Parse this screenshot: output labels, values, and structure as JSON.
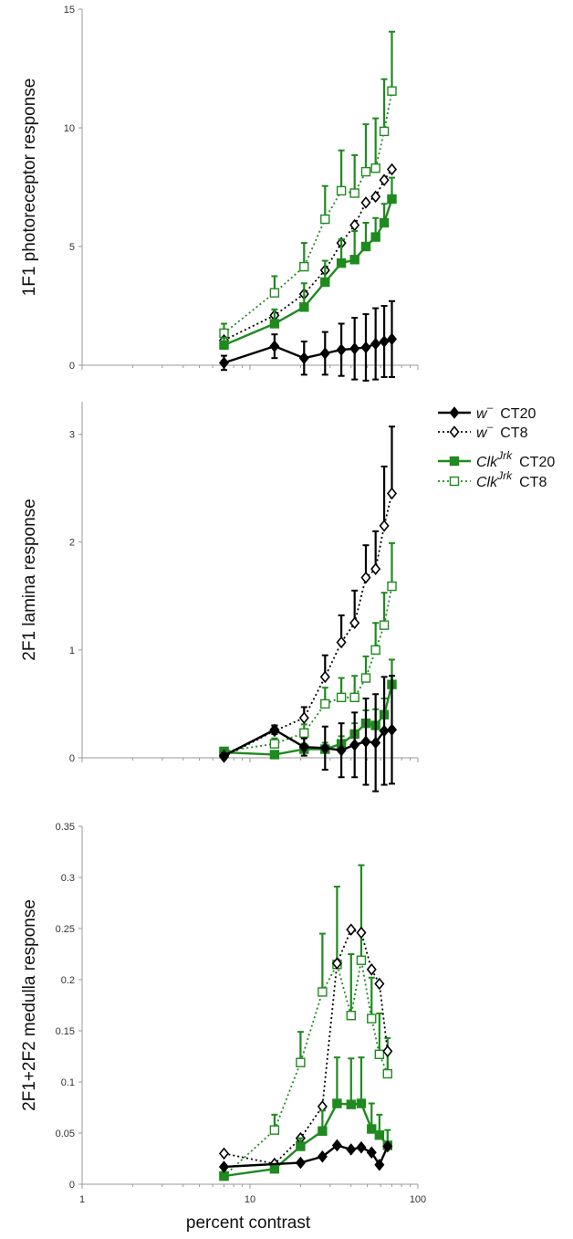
{
  "x_label": "percent contrast",
  "x_ticks": [
    "1",
    "10",
    "100"
  ],
  "colors": {
    "black": "#000000",
    "green": "#1f8a1f"
  },
  "legend": [
    {
      "id": "w_CT20",
      "genotype": "w",
      "sup": "–",
      "condition": "CT20",
      "color": "#000000",
      "line": "solid",
      "marker": "diamond-filled"
    },
    {
      "id": "w_CT8",
      "genotype": "w",
      "sup": "–",
      "condition": "CT8",
      "color": "#000000",
      "line": "dotted",
      "marker": "diamond-open"
    },
    {
      "id": "clk_CT20",
      "genotype": "Clk",
      "sup": "Jrk",
      "condition": "CT20",
      "color": "#1f8a1f",
      "line": "solid",
      "marker": "square-filled"
    },
    {
      "id": "clk_CT8",
      "genotype": "Clk",
      "sup": "Jrk",
      "condition": "CT8",
      "color": "#1f8a1f",
      "line": "dotted",
      "marker": "square-open"
    }
  ],
  "chart_data": [
    {
      "type": "line",
      "ylabel": "1F1 photoreceptor response",
      "xlabel": "percent contrast",
      "xscale": "log",
      "xlim": [
        1,
        100
      ],
      "ylim": [
        0,
        15
      ],
      "yticks": [
        0,
        5,
        10,
        15
      ],
      "series": [
        {
          "name": "w– CT20",
          "x": [
            7,
            14,
            21,
            28,
            35,
            42,
            49,
            56,
            63,
            70
          ],
          "y": [
            0.1,
            0.8,
            0.3,
            0.5,
            0.65,
            0.7,
            0.75,
            0.9,
            1.0,
            1.1
          ],
          "err": [
            0.3,
            0.5,
            0.7,
            0.9,
            1.1,
            1.3,
            1.4,
            1.5,
            1.5,
            1.6
          ]
        },
        {
          "name": "w– CT8",
          "x": [
            7,
            14,
            21,
            28,
            35,
            42,
            49,
            56,
            63,
            70
          ],
          "y": [
            1.05,
            2.1,
            3.0,
            4.0,
            5.15,
            5.9,
            6.85,
            7.1,
            7.8,
            8.25
          ],
          "err": [
            0,
            0,
            0,
            0,
            0,
            0,
            0,
            0,
            0,
            0
          ]
        },
        {
          "name": "ClkJrk CT20",
          "x": [
            7,
            14,
            21,
            28,
            35,
            42,
            49,
            56,
            63,
            70
          ],
          "y": [
            0.85,
            1.75,
            2.45,
            3.5,
            4.3,
            4.45,
            5.0,
            5.4,
            6.0,
            7.0
          ],
          "err": [
            0.3,
            0.6,
            1.0,
            0.9,
            1.0,
            1.2,
            1.0,
            0.8,
            0.8,
            0.9
          ]
        },
        {
          "name": "ClkJrk CT8",
          "x": [
            7,
            14,
            21,
            28,
            35,
            42,
            49,
            56,
            63,
            70
          ],
          "y": [
            1.35,
            3.05,
            4.15,
            6.15,
            7.35,
            7.25,
            8.15,
            8.3,
            9.85,
            11.55
          ],
          "err": [
            0.4,
            0.7,
            1.0,
            1.4,
            1.7,
            1.6,
            2.0,
            2.1,
            2.2,
            2.5
          ]
        }
      ]
    },
    {
      "type": "line",
      "ylabel": "2F1 lamina response",
      "xlabel": "percent contrast",
      "xscale": "log",
      "xlim": [
        1,
        100
      ],
      "ylim": [
        0,
        3.3
      ],
      "yticks": [
        0,
        1,
        2,
        3
      ],
      "series": [
        {
          "name": "w– CT20",
          "x": [
            7,
            14,
            21,
            28,
            35,
            42,
            49,
            56,
            63,
            70
          ],
          "y": [
            0.02,
            0.26,
            0.1,
            0.09,
            0.07,
            0.12,
            0.15,
            0.14,
            0.25,
            0.26
          ],
          "err": [
            0.02,
            0.04,
            0.08,
            0.2,
            0.25,
            0.3,
            0.4,
            0.45,
            0.5,
            0.5
          ]
        },
        {
          "name": "w– CT8",
          "x": [
            7,
            14,
            21,
            28,
            35,
            42,
            49,
            56,
            63,
            70
          ],
          "y": [
            0.01,
            0.25,
            0.37,
            0.75,
            1.07,
            1.25,
            1.67,
            1.75,
            2.15,
            2.45
          ],
          "err": [
            0.02,
            0.05,
            0.1,
            0.2,
            0.25,
            0.3,
            0.3,
            0.35,
            0.55,
            0.62
          ]
        },
        {
          "name": "ClkJrk CT20",
          "x": [
            7,
            14,
            21,
            28,
            35,
            42,
            49,
            56,
            63,
            70
          ],
          "y": [
            0.05,
            0.03,
            0.08,
            0.08,
            0.13,
            0.22,
            0.32,
            0.3,
            0.4,
            0.68
          ],
          "err": [
            0.02,
            0.02,
            0.05,
            0.06,
            0.07,
            0.1,
            0.12,
            0.15,
            0.15,
            0.23
          ]
        },
        {
          "name": "ClkJrk CT8",
          "x": [
            7,
            14,
            21,
            28,
            35,
            42,
            49,
            56,
            63,
            70
          ],
          "y": [
            0.06,
            0.13,
            0.23,
            0.5,
            0.56,
            0.56,
            0.74,
            1.0,
            1.23,
            1.59
          ],
          "err": [
            0.03,
            0.05,
            0.08,
            0.15,
            0.18,
            0.2,
            0.2,
            0.25,
            0.3,
            0.4
          ]
        }
      ]
    },
    {
      "type": "line",
      "ylabel": "2F1+2F2 medulla response",
      "xlabel": "percent contrast",
      "xscale": "log",
      "xlim": [
        1,
        100
      ],
      "ylim": [
        0,
        0.35
      ],
      "yticks": [
        0,
        0.05,
        0.1,
        0.15,
        0.2,
        0.25,
        0.3,
        0.35
      ],
      "series": [
        {
          "name": "w– CT20",
          "x": [
            7,
            20,
            27,
            33,
            40,
            46,
            53,
            59,
            66
          ],
          "y": [
            0.017,
            0.021,
            0.027,
            0.038,
            0.034,
            0.036,
            0.031,
            0.019,
            0.037
          ],
          "err": [
            0,
            0,
            0,
            0,
            0,
            0,
            0,
            0,
            0
          ]
        },
        {
          "name": "w– CT8",
          "x": [
            7,
            14,
            20,
            27,
            33,
            40,
            46,
            53,
            59,
            66
          ],
          "y": [
            0.03,
            0.02,
            0.045,
            0.076,
            0.216,
            0.249,
            0.246,
            0.21,
            0.196,
            0.13
          ],
          "err": [
            0,
            0,
            0,
            0,
            0,
            0,
            0,
            0,
            0,
            0
          ]
        },
        {
          "name": "ClkJrk CT20",
          "x": [
            7,
            14,
            20,
            27,
            33,
            40,
            46,
            53,
            59,
            66
          ],
          "y": [
            0.008,
            0.015,
            0.037,
            0.052,
            0.079,
            0.078,
            0.079,
            0.054,
            0.048,
            0.038
          ],
          "err": [
            0.002,
            0.003,
            0.008,
            0.02,
            0.045,
            0.045,
            0.045,
            0.025,
            0.02,
            0.015
          ]
        },
        {
          "name": "ClkJrk CT8",
          "x": [
            7,
            14,
            20,
            27,
            33,
            40,
            46,
            53,
            59,
            66
          ],
          "y": [
            0.008,
            0.053,
            0.119,
            0.188,
            0.215,
            0.165,
            0.219,
            0.162,
            0.127,
            0.108
          ],
          "err": [
            0.004,
            0.015,
            0.03,
            0.057,
            0.076,
            0.06,
            0.093,
            0.04,
            0.04,
            0.035
          ]
        }
      ]
    }
  ]
}
